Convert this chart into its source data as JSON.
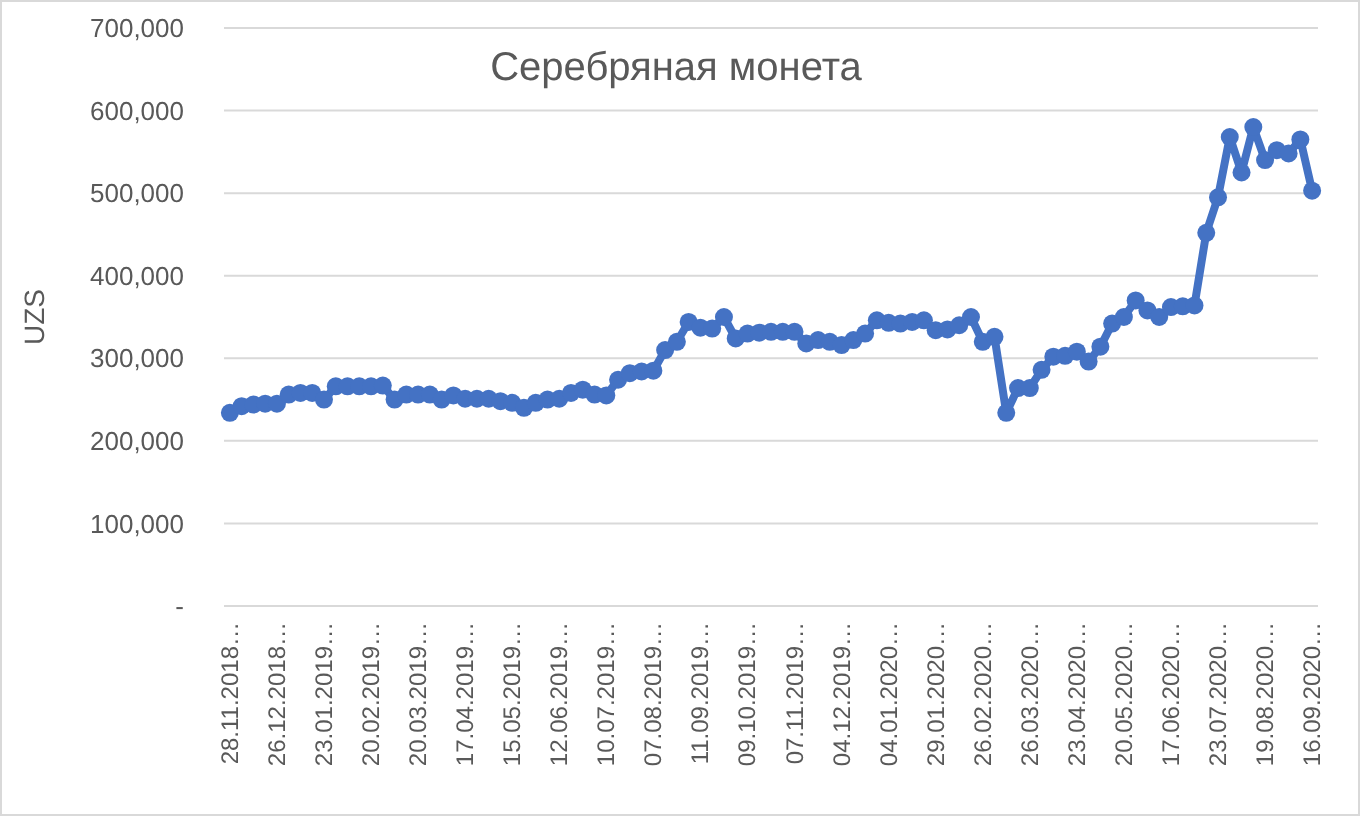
{
  "chart_data": {
    "type": "line",
    "title": "Серебряная монета",
    "ylabel": "UZS",
    "categories": [
      "28.11.2018…",
      null,
      null,
      null,
      "26.12.2018…",
      null,
      null,
      null,
      "23.01.2019…",
      null,
      null,
      null,
      "20.02.2019…",
      null,
      null,
      null,
      "20.03.2019…",
      null,
      null,
      null,
      "17.04.2019…",
      null,
      null,
      null,
      "15.05.2019…",
      null,
      null,
      null,
      "12.06.2019…",
      null,
      null,
      null,
      "10.07.2019…",
      null,
      null,
      null,
      "07.08.2019…",
      null,
      null,
      null,
      "11.09.2019…",
      null,
      null,
      null,
      "09.10.2019…",
      null,
      null,
      null,
      "07.11.2019…",
      null,
      null,
      null,
      "04.12.2019…",
      null,
      null,
      null,
      "04.01.2020…",
      null,
      null,
      null,
      "29.01.2020…",
      null,
      null,
      null,
      "26.02.2020…",
      null,
      null,
      null,
      "26.03.2020…",
      null,
      null,
      null,
      "23.04.2020…",
      null,
      null,
      null,
      "20.05.2020…",
      null,
      null,
      null,
      "17.06.2020…",
      null,
      null,
      null,
      "23.07.2020…",
      null,
      null,
      null,
      "19.08.2020…",
      null,
      null,
      null,
      "16.09.2020…"
    ],
    "series": [
      {
        "color": "#4472c4",
        "values": [
          234000,
          242000,
          244000,
          245000,
          245000,
          256000,
          258000,
          258000,
          250000,
          266000,
          266000,
          266000,
          266000,
          267000,
          250000,
          256000,
          256000,
          256000,
          250000,
          255000,
          251000,
          251000,
          251000,
          248000,
          246000,
          240000,
          246000,
          250000,
          251000,
          258000,
          262000,
          256000,
          255000,
          274000,
          282000,
          284000,
          285000,
          310000,
          320000,
          344000,
          337000,
          336000,
          350000,
          324000,
          330000,
          331000,
          332000,
          332000,
          332000,
          318000,
          322000,
          320000,
          316000,
          322000,
          330000,
          346000,
          343000,
          342000,
          344000,
          346000,
          334000,
          335000,
          340000,
          350000,
          320000,
          326000,
          234000,
          264000,
          264000,
          286000,
          302000,
          303000,
          308000,
          296000,
          314000,
          342000,
          350000,
          370000,
          358000,
          350000,
          362000,
          363000,
          364000,
          452000,
          495000,
          568000,
          525000,
          580000,
          540000,
          552000,
          548000,
          565000,
          503000
        ]
      }
    ],
    "ylim": [
      0,
      700000
    ],
    "yticks": [
      {
        "value": 0,
        "label": "-"
      },
      {
        "value": 100000,
        "label": "100,000"
      },
      {
        "value": 200000,
        "label": "200,000"
      },
      {
        "value": 300000,
        "label": "300,000"
      },
      {
        "value": 400000,
        "label": "400,000"
      },
      {
        "value": 500000,
        "label": "500,000"
      },
      {
        "value": 600000,
        "label": "600,000"
      },
      {
        "value": 700000,
        "label": "700,000"
      }
    ],
    "grid": "y",
    "marker": "circle",
    "line_style": "solid"
  }
}
